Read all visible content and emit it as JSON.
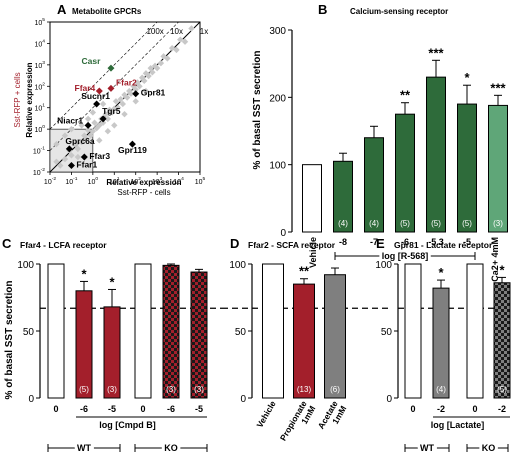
{
  "chart_data": [
    {
      "panel": "A",
      "type": "scatter",
      "title": "Metabolite GPCRs",
      "xlabel": "Relative expression",
      "xlabel2": "Sst-RFP - cells",
      "ylabel": "Relative expression",
      "ylabel2": "Sst-RFP + cells",
      "log_scale": true,
      "xlim": [
        0.01,
        100000
      ],
      "ylim": [
        0.01,
        100000
      ],
      "x_ticks": [
        "10-2",
        "10-1",
        "100",
        "101",
        "102",
        "103",
        "104",
        "105"
      ],
      "y_ticks": [
        "10-2",
        "10-1",
        "100",
        "101",
        "102",
        "103",
        "104",
        "105"
      ],
      "ratio_lines": [
        "100x",
        "10x",
        "1x"
      ],
      "grid": false,
      "points_background": [
        [
          0.02,
          0.03
        ],
        [
          0.03,
          0.02
        ],
        [
          0.05,
          0.04
        ],
        [
          0.08,
          0.1
        ],
        [
          0.1,
          0.06
        ],
        [
          0.15,
          0.2
        ],
        [
          0.2,
          0.12
        ],
        [
          0.3,
          0.25
        ],
        [
          0.4,
          0.5
        ],
        [
          0.5,
          0.35
        ],
        [
          0.6,
          0.9
        ],
        [
          0.8,
          0.5
        ],
        [
          1,
          0.8
        ],
        [
          1.2,
          2
        ],
        [
          1.5,
          1.1
        ],
        [
          2,
          1.5
        ],
        [
          2.5,
          3
        ],
        [
          3,
          2
        ],
        [
          4,
          5
        ],
        [
          5,
          3
        ],
        [
          6,
          8
        ],
        [
          8,
          6
        ],
        [
          10,
          9
        ],
        [
          12,
          20
        ],
        [
          15,
          10
        ],
        [
          20,
          25
        ],
        [
          25,
          15
        ],
        [
          30,
          40
        ],
        [
          40,
          30
        ],
        [
          50,
          60
        ],
        [
          60,
          45
        ],
        [
          80,
          100
        ],
        [
          100,
          70
        ],
        [
          120,
          150
        ],
        [
          150,
          100
        ],
        [
          200,
          250
        ],
        [
          250,
          180
        ],
        [
          300,
          400
        ],
        [
          400,
          300
        ],
        [
          500,
          700
        ],
        [
          600,
          450
        ],
        [
          800,
          900
        ],
        [
          1000,
          700
        ],
        [
          1500,
          1200
        ],
        [
          2000,
          2500
        ],
        [
          3000,
          2000
        ],
        [
          5000,
          6000
        ],
        [
          8000,
          5000
        ],
        [
          12000,
          15000
        ],
        [
          20000,
          12000
        ],
        [
          40000,
          50000
        ],
        [
          2,
          0.3
        ],
        [
          5,
          0.8
        ],
        [
          10,
          1.5
        ],
        [
          30,
          5
        ],
        [
          100,
          20
        ],
        [
          300,
          60
        ],
        [
          0.3,
          1.5
        ],
        [
          0.6,
          3
        ],
        [
          1,
          6
        ],
        [
          3,
          15
        ],
        [
          0.05,
          0.5
        ],
        [
          0.1,
          1
        ],
        [
          0.2,
          0.05
        ],
        [
          0.02,
          0.2
        ]
      ],
      "labeled_points": [
        {
          "name": "Casr",
          "x": 7,
          "y": 700,
          "color": "#2e6b3a"
        },
        {
          "name": "Ffar4",
          "x": 2,
          "y": 60,
          "color": "#a31f2b"
        },
        {
          "name": "Ffar2",
          "x": 7,
          "y": 80,
          "color": "#a31f2b"
        },
        {
          "name": "Gpr81",
          "x": 100,
          "y": 45,
          "color": "#000000"
        },
        {
          "name": "Sucnr1",
          "x": 1.5,
          "y": 15,
          "color": "#000000"
        },
        {
          "name": "Tgr5",
          "x": 3,
          "y": 3,
          "color": "#000000"
        },
        {
          "name": "Niacr1",
          "x": 0.6,
          "y": 1.5,
          "color": "#000000"
        },
        {
          "name": "Gpr119",
          "x": 70,
          "y": 0.2,
          "color": "#000000"
        },
        {
          "name": "Gprc6a",
          "x": 0.08,
          "y": 0.12,
          "color": "#000000"
        },
        {
          "name": "Ffar3",
          "x": 0.4,
          "y": 0.05,
          "color": "#000000"
        },
        {
          "name": "Ffar1",
          "x": 0.1,
          "y": 0.02,
          "color": "#000000"
        }
      ]
    },
    {
      "panel": "B",
      "type": "bar",
      "title": "Calcium-sensing receptor",
      "ylabel": "% of basal SST secretion",
      "ylim": [
        0,
        300
      ],
      "y_ticks": [
        "0",
        "100",
        "200",
        "300"
      ],
      "xgroup_label": "log [R-568]",
      "categories": [
        "Vehicle",
        "-8",
        "-7",
        "-6",
        "-5.3",
        "-5",
        "Ca2+ 4mM"
      ],
      "values": [
        100,
        105,
        140,
        175,
        230,
        190,
        188
      ],
      "errors": [
        0,
        12,
        17,
        17,
        25,
        28,
        15
      ],
      "n_labels": [
        "",
        "(4)",
        "(4)",
        "(5)",
        "(5)",
        "(5)",
        "(3)"
      ],
      "significance": [
        "",
        "",
        "",
        "**",
        "***",
        "*",
        "***"
      ],
      "colors": [
        "#ffffff",
        "#2e6b3a",
        "#2e6b3a",
        "#2e6b3a",
        "#2e6b3a",
        "#2e6b3a",
        "#5fa678"
      ]
    },
    {
      "panel": "C",
      "type": "bar",
      "title": "Ffar4 - LCFA receptor",
      "ylabel": "% of basal SST secretion",
      "ylim": [
        0,
        100
      ],
      "y_ticks": [
        "0",
        "50",
        "100"
      ],
      "xgroup_label": "log [Cmpd B]",
      "groups": [
        "WT",
        "KO"
      ],
      "categories": [
        "0",
        "-6",
        "-5",
        "0",
        "-6",
        "-5"
      ],
      "values": [
        100,
        80,
        68,
        100,
        99,
        94
      ],
      "errors": [
        0,
        7,
        13,
        0,
        1,
        2
      ],
      "n_labels": [
        "",
        "(5)",
        "(3)",
        "",
        "(3)",
        "(3)"
      ],
      "significance": [
        "",
        "*",
        "*",
        "",
        "",
        ""
      ],
      "reference_line": 67
    },
    {
      "panel": "D",
      "type": "bar",
      "title": "Ffar2 - SCFA receptor",
      "ylim": [
        0,
        100
      ],
      "y_ticks": [
        "0",
        "50",
        "100"
      ],
      "categories": [
        "Vehicle",
        "Propionate 1mM",
        "Acetate 1mM"
      ],
      "values": [
        100,
        85,
        92
      ],
      "errors": [
        0,
        4,
        5
      ],
      "n_labels": [
        "",
        "(13)",
        "(6)"
      ],
      "significance": [
        "",
        "**",
        ""
      ],
      "reference_line": 67
    },
    {
      "panel": "E",
      "type": "bar",
      "title": "Gpr81 - Lactate receptor",
      "ylim": [
        0,
        100
      ],
      "y_ticks": [
        "0",
        "50",
        "100"
      ],
      "xgroup_label": "log [Lactate]",
      "groups": [
        "WT",
        "KO"
      ],
      "categories": [
        "0",
        "-2",
        "0",
        "-2"
      ],
      "values": [
        100,
        82,
        100,
        86
      ],
      "errors": [
        0,
        6,
        0,
        4
      ],
      "n_labels": [
        "",
        "(4)",
        "",
        "(5)"
      ],
      "significance": [
        "",
        "*",
        "",
        "*"
      ],
      "reference_line": 67
    }
  ],
  "colors": {
    "casr_green": "#2e6b3a",
    "ca_green": "#5fa678",
    "ffar_red": "#a31f2b",
    "gray_bar": "#7f7f7f",
    "scatter_gray": "#c8c8c8"
  }
}
